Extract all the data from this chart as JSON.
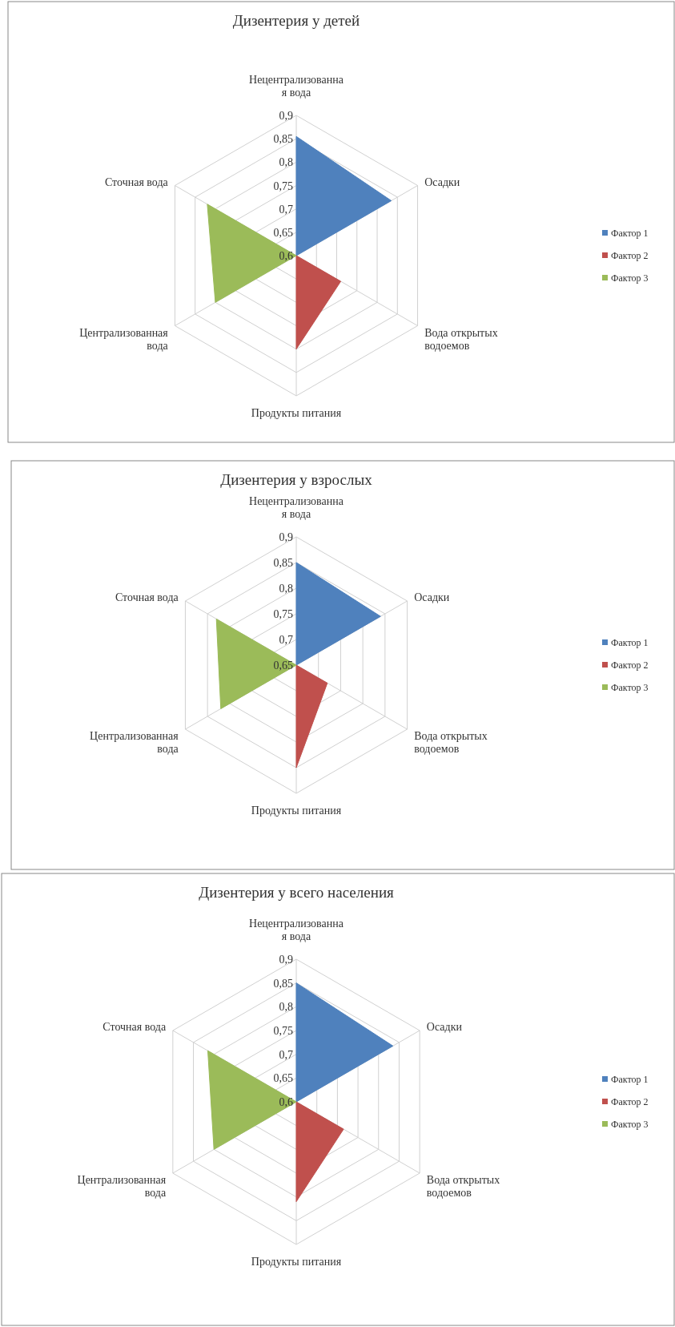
{
  "chart_data": [
    {
      "type": "radar",
      "title": "Дизентерия у детей",
      "categories": [
        "Нецентрализованная вода",
        "Осадки",
        "Вода открытых водоемов",
        "Продукты питания",
        "Централизованная вода",
        "Сточная вода"
      ],
      "ylim": [
        0.6,
        0.9
      ],
      "yticks": [
        {
          "value": 0.6,
          "label": "0,6"
        },
        {
          "value": 0.65,
          "label": "0,65"
        },
        {
          "value": 0.7,
          "label": "0,7"
        },
        {
          "value": 0.75,
          "label": "0,75"
        },
        {
          "value": 0.8,
          "label": "0,8"
        },
        {
          "value": 0.85,
          "label": "0,85"
        },
        {
          "value": 0.9,
          "label": "0,9"
        }
      ],
      "grid": true,
      "legend": "right",
      "series": [
        {
          "name": "Фактор 1",
          "color": "#4f81bd",
          "type": "area",
          "values": [
            0.855,
            0.835,
            0.6,
            0.6,
            0.6,
            0.6
          ]
        },
        {
          "name": "Фактор 2",
          "color": "#c0504d",
          "type": "area",
          "values": [
            0.6,
            0.6,
            0.71,
            0.8,
            0.6,
            0.6
          ]
        },
        {
          "name": "Фактор 3",
          "color": "#9bbb59",
          "type": "area",
          "values": [
            0.6,
            0.6,
            0.6,
            0.6,
            0.8,
            0.82
          ]
        }
      ]
    },
    {
      "type": "radar",
      "title": "Дизентерия у взрослых",
      "categories": [
        "Нецентрализованная вода",
        "Осадки",
        "Вода открытых водоемов",
        "Продукты питания",
        "Централизованная вода",
        "Сточная вода"
      ],
      "ylim": [
        0.65,
        0.9
      ],
      "yticks": [
        {
          "value": 0.65,
          "label": "0,65"
        },
        {
          "value": 0.7,
          "label": "0,7"
        },
        {
          "value": 0.75,
          "label": "0,75"
        },
        {
          "value": 0.8,
          "label": "0,8"
        },
        {
          "value": 0.85,
          "label": "0,85"
        },
        {
          "value": 0.9,
          "label": "0,9"
        }
      ],
      "grid": true,
      "legend": "right",
      "series": [
        {
          "name": "Фактор 1",
          "color": "#4f81bd",
          "type": "area",
          "values": [
            0.85,
            0.84,
            0.65,
            0.65,
            0.65,
            0.65
          ]
        },
        {
          "name": "Фактор 2",
          "color": "#c0504d",
          "type": "area",
          "values": [
            0.65,
            0.65,
            0.72,
            0.85,
            0.65,
            0.65
          ]
        },
        {
          "name": "Фактор 3",
          "color": "#9bbb59",
          "type": "area",
          "values": [
            0.65,
            0.65,
            0.65,
            0.65,
            0.82,
            0.83
          ]
        }
      ]
    },
    {
      "type": "radar",
      "title": "Дизентерия у всего населения",
      "categories": [
        "Нецентрализованная вода",
        "Осадки",
        "Вода открытых водоемов",
        "Продукты питания",
        "Централизованная вода",
        "Сточная вода"
      ],
      "ylim": [
        0.6,
        0.9
      ],
      "yticks": [
        {
          "value": 0.6,
          "label": "0,6"
        },
        {
          "value": 0.65,
          "label": "0,65"
        },
        {
          "value": 0.7,
          "label": "0,7"
        },
        {
          "value": 0.75,
          "label": "0,75"
        },
        {
          "value": 0.8,
          "label": "0,8"
        },
        {
          "value": 0.85,
          "label": "0,85"
        },
        {
          "value": 0.9,
          "label": "0,9"
        }
      ],
      "grid": true,
      "legend": "right",
      "series": [
        {
          "name": "Фактор 1",
          "color": "#4f81bd",
          "type": "area",
          "values": [
            0.85,
            0.835,
            0.6,
            0.6,
            0.6,
            0.6
          ]
        },
        {
          "name": "Фактор 2",
          "color": "#c0504d",
          "type": "area",
          "values": [
            0.6,
            0.6,
            0.715,
            0.81,
            0.6,
            0.6
          ]
        },
        {
          "name": "Фактор 3",
          "color": "#9bbb59",
          "type": "area",
          "values": [
            0.6,
            0.6,
            0.6,
            0.6,
            0.8,
            0.815
          ]
        }
      ]
    }
  ]
}
